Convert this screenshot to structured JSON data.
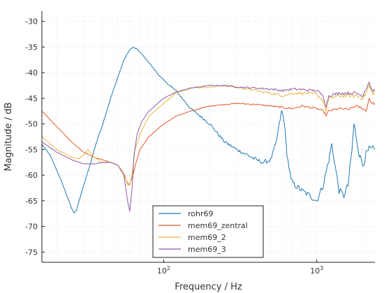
{
  "chart_data": {
    "type": "line",
    "xlabel": "Frequency / Hz",
    "ylabel": "Magnitude / dB",
    "xscale": "log",
    "xlim": [
      16,
      2400
    ],
    "ylim": [
      -77,
      -28
    ],
    "grid": true,
    "legend_position": "bottom-center",
    "x_ticks": [
      {
        "value": 100,
        "base": "10",
        "exp": "2"
      },
      {
        "value": 1000,
        "base": "10",
        "exp": "3"
      }
    ],
    "y_ticks": [
      -30,
      -35,
      -40,
      -45,
      -50,
      -55,
      -60,
      -65,
      -70,
      -75
    ],
    "series": [
      {
        "name": "rohr69",
        "color": "#1f77b4",
        "noise": 0.6,
        "points": [
          [
            16,
            -54
          ],
          [
            18,
            -56
          ],
          [
            20,
            -59
          ],
          [
            22,
            -62
          ],
          [
            24,
            -65
          ],
          [
            25,
            -66.5
          ],
          [
            26,
            -67.3
          ],
          [
            27,
            -66.8
          ],
          [
            28,
            -65
          ],
          [
            30,
            -62
          ],
          [
            33,
            -58
          ],
          [
            36,
            -54
          ],
          [
            40,
            -50
          ],
          [
            45,
            -45
          ],
          [
            50,
            -41
          ],
          [
            55,
            -37.5
          ],
          [
            60,
            -35.5
          ],
          [
            63,
            -35.1
          ],
          [
            66,
            -35.3
          ],
          [
            70,
            -36
          ],
          [
            80,
            -38
          ],
          [
            90,
            -40
          ],
          [
            100,
            -41.5
          ],
          [
            120,
            -43.5
          ],
          [
            150,
            -47
          ],
          [
            200,
            -50
          ],
          [
            250,
            -53.5
          ],
          [
            300,
            -55
          ],
          [
            350,
            -56
          ],
          [
            400,
            -57
          ],
          [
            450,
            -57.5
          ],
          [
            500,
            -57
          ],
          [
            540,
            -54
          ],
          [
            570,
            -50
          ],
          [
            590,
            -47.5
          ],
          [
            610,
            -49
          ],
          [
            640,
            -56
          ],
          [
            680,
            -61
          ],
          [
            720,
            -62
          ],
          [
            800,
            -63
          ],
          [
            900,
            -64
          ],
          [
            1000,
            -65
          ],
          [
            1100,
            -62
          ],
          [
            1200,
            -57
          ],
          [
            1250,
            -54
          ],
          [
            1300,
            -57
          ],
          [
            1400,
            -63
          ],
          [
            1500,
            -64
          ],
          [
            1600,
            -62
          ],
          [
            1700,
            -55
          ],
          [
            1750,
            -50
          ],
          [
            1800,
            -52
          ],
          [
            1900,
            -56
          ],
          [
            2000,
            -58
          ],
          [
            2100,
            -56
          ],
          [
            2200,
            -55
          ],
          [
            2400,
            -55
          ]
        ]
      },
      {
        "name": "mem69_zentral",
        "color": "#e0592b",
        "noise": 0.2,
        "points": [
          [
            16,
            -47.5
          ],
          [
            20,
            -50.5
          ],
          [
            25,
            -53.5
          ],
          [
            30,
            -55.5
          ],
          [
            35,
            -56.5
          ],
          [
            40,
            -57
          ],
          [
            45,
            -57.5
          ],
          [
            50,
            -58
          ],
          [
            55,
            -60
          ],
          [
            58,
            -61.5
          ],
          [
            60,
            -61.8
          ],
          [
            63,
            -60
          ],
          [
            66,
            -57.5
          ],
          [
            70,
            -55
          ],
          [
            80,
            -52.5
          ],
          [
            100,
            -50
          ],
          [
            120,
            -48.5
          ],
          [
            150,
            -47.5
          ],
          [
            200,
            -46.5
          ],
          [
            250,
            -46.2
          ],
          [
            300,
            -46
          ],
          [
            400,
            -46.2
          ],
          [
            500,
            -46.5
          ],
          [
            600,
            -46.8
          ],
          [
            700,
            -47
          ],
          [
            800,
            -46.5
          ],
          [
            1000,
            -47
          ],
          [
            1100,
            -47.5
          ],
          [
            1150,
            -48.3
          ],
          [
            1200,
            -47.5
          ],
          [
            1400,
            -47
          ],
          [
            1600,
            -47.2
          ],
          [
            1800,
            -46.5
          ],
          [
            2000,
            -47
          ],
          [
            2100,
            -47.5
          ],
          [
            2200,
            -45
          ],
          [
            2300,
            -46
          ],
          [
            2400,
            -46
          ]
        ]
      },
      {
        "name": "mem69_2",
        "color": "#ecb53b",
        "noise": 0.3,
        "points": [
          [
            16,
            -52.5
          ],
          [
            20,
            -55
          ],
          [
            25,
            -56.5
          ],
          [
            28,
            -56.8
          ],
          [
            30,
            -56
          ],
          [
            32,
            -55
          ],
          [
            35,
            -56.5
          ],
          [
            40,
            -57.5
          ],
          [
            45,
            -57.5
          ],
          [
            50,
            -58
          ],
          [
            55,
            -59.5
          ],
          [
            58,
            -61.8
          ],
          [
            60,
            -62
          ],
          [
            62,
            -60
          ],
          [
            65,
            -55
          ],
          [
            70,
            -52
          ],
          [
            80,
            -48.5
          ],
          [
            100,
            -46
          ],
          [
            120,
            -44
          ],
          [
            150,
            -43
          ],
          [
            200,
            -42.8
          ],
          [
            250,
            -42.5
          ],
          [
            300,
            -42.8
          ],
          [
            400,
            -43.5
          ],
          [
            500,
            -44
          ],
          [
            600,
            -44.5
          ],
          [
            700,
            -44
          ],
          [
            800,
            -44
          ],
          [
            1000,
            -44.2
          ],
          [
            1100,
            -45.5
          ],
          [
            1150,
            -47.5
          ],
          [
            1200,
            -45
          ],
          [
            1400,
            -44.5
          ],
          [
            1600,
            -44.5
          ],
          [
            1800,
            -44.5
          ],
          [
            2000,
            -45
          ],
          [
            2100,
            -44
          ],
          [
            2200,
            -42.5
          ],
          [
            2300,
            -44
          ],
          [
            2400,
            -44
          ]
        ]
      },
      {
        "name": "mem69_3",
        "color": "#8f5ba6",
        "noise": 0.25,
        "points": [
          [
            16,
            -53.5
          ],
          [
            20,
            -55.5
          ],
          [
            25,
            -57
          ],
          [
            30,
            -57.8
          ],
          [
            35,
            -57.8
          ],
          [
            40,
            -57.5
          ],
          [
            45,
            -57.5
          ],
          [
            50,
            -58
          ],
          [
            55,
            -60
          ],
          [
            58,
            -65
          ],
          [
            60,
            -67
          ],
          [
            62,
            -63
          ],
          [
            64,
            -56
          ],
          [
            67,
            -52
          ],
          [
            72,
            -49.5
          ],
          [
            80,
            -47.5
          ],
          [
            100,
            -45
          ],
          [
            120,
            -43.8
          ],
          [
            150,
            -43
          ],
          [
            200,
            -42.5
          ],
          [
            250,
            -42.5
          ],
          [
            300,
            -42.8
          ],
          [
            400,
            -43
          ],
          [
            500,
            -43.2
          ],
          [
            600,
            -43.5
          ],
          [
            700,
            -43.2
          ],
          [
            800,
            -43.3
          ],
          [
            1000,
            -43.5
          ],
          [
            1100,
            -44.5
          ],
          [
            1150,
            -46.5
          ],
          [
            1200,
            -44.5
          ],
          [
            1400,
            -44
          ],
          [
            1600,
            -44
          ],
          [
            1800,
            -44
          ],
          [
            2000,
            -44.5
          ],
          [
            2100,
            -43
          ],
          [
            2200,
            -41.8
          ],
          [
            2300,
            -43.5
          ],
          [
            2400,
            -43.5
          ]
        ]
      }
    ]
  }
}
